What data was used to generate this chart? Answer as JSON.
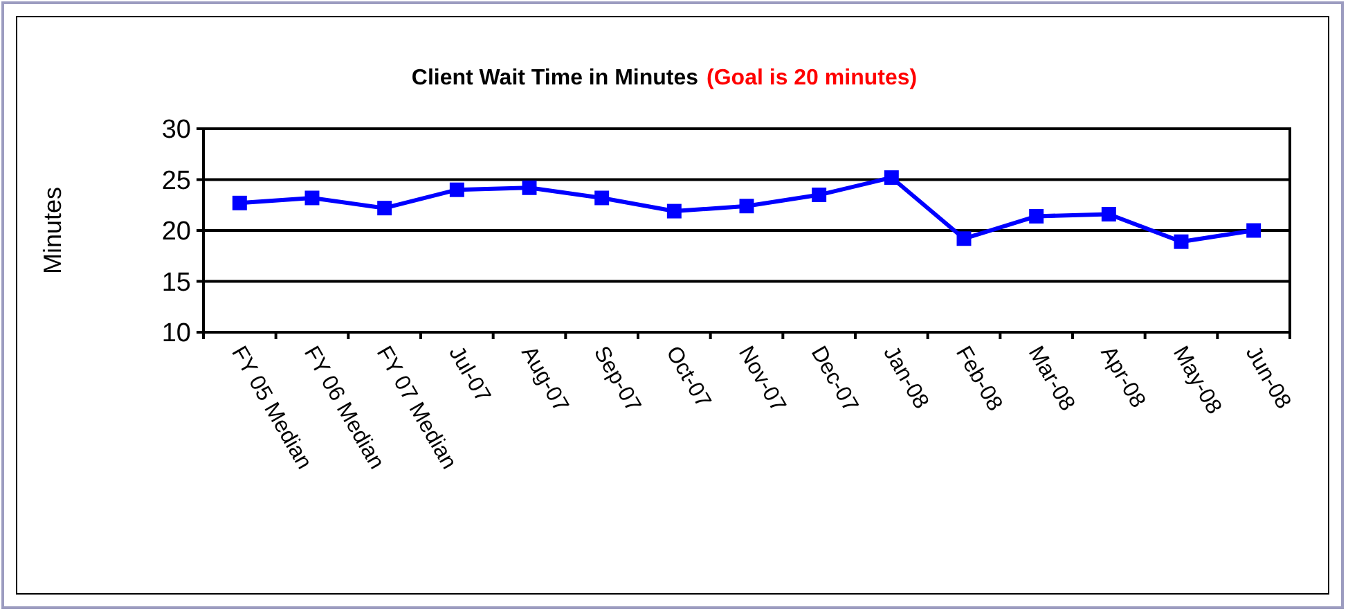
{
  "chart_data": {
    "type": "line",
    "title": "Client Wait Time in Minutes",
    "subtitle": "(Goal is 20 minutes)",
    "ylabel": "Minutes",
    "categories": [
      "FY 05 Median",
      "FY 06 Median",
      "FY 07 Median",
      "Jul-07",
      "Aug-07",
      "Sep-07",
      "Oct-07",
      "Nov-07",
      "Dec-07",
      "Jan-08",
      "Feb-08",
      "Mar-08",
      "Apr-08",
      "May-08",
      "Jun-08"
    ],
    "series": [
      {
        "color": "#0000ff",
        "values": [
          22.7,
          23.2,
          22.2,
          24.0,
          24.2,
          23.2,
          21.9,
          22.4,
          23.5,
          25.2,
          19.2,
          21.4,
          21.6,
          18.9,
          20.0
        ]
      }
    ],
    "ylim": [
      10,
      30
    ],
    "yticks": [
      10,
      15,
      20,
      25,
      30
    ],
    "grid": "y",
    "marker": "square"
  }
}
